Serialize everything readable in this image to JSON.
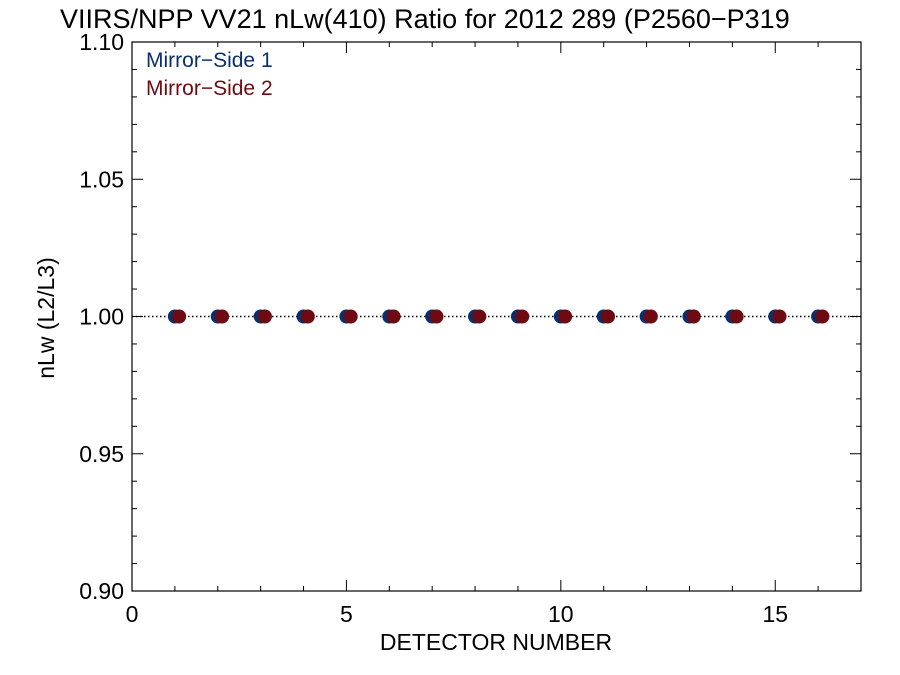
{
  "chart_data": {
    "type": "scatter",
    "title": "VIIRS/NPP VV21 nLw(410) Ratio for 2012 289 (P2560−P319",
    "xlabel": "DETECTOR NUMBER",
    "ylabel": "nLw (L2/L3)",
    "xlim": [
      0,
      17
    ],
    "ylim": [
      0.9,
      1.1
    ],
    "x_ticks": [
      0,
      5,
      10,
      15
    ],
    "x_tick_labels": [
      "0",
      "5",
      "10",
      "15"
    ],
    "y_ticks": [
      0.9,
      0.95,
      1.0,
      1.05,
      1.1
    ],
    "y_tick_labels": [
      "0.90",
      "0.95",
      "1.00",
      "1.05",
      "1.10"
    ],
    "reference_line": {
      "y": 1.0,
      "style": "dotted"
    },
    "legend_position": "top-left",
    "series": [
      {
        "name": "Mirror−Side 1",
        "color": "#0b2f6b",
        "x": [
          1,
          2,
          3,
          4,
          5,
          6,
          7,
          8,
          9,
          10,
          11,
          12,
          13,
          14,
          15,
          16
        ],
        "y": [
          1.0,
          1.0,
          1.0,
          1.0,
          1.0,
          1.0,
          1.0,
          1.0,
          1.0,
          1.0,
          1.0,
          1.0,
          1.0,
          1.0,
          1.0,
          1.0
        ]
      },
      {
        "name": "Mirror−Side 2",
        "color": "#6e0a12",
        "x": [
          1.1,
          2.1,
          3.1,
          4.1,
          5.1,
          6.1,
          7.1,
          8.1,
          9.1,
          10.1,
          11.1,
          12.1,
          13.1,
          14.1,
          15.1,
          16.1
        ],
        "y": [
          1.0,
          1.0,
          1.0,
          1.0,
          1.0,
          1.0,
          1.0,
          1.0,
          1.0,
          1.0,
          1.0,
          1.0,
          1.0,
          1.0,
          1.0,
          1.0
        ]
      }
    ]
  }
}
